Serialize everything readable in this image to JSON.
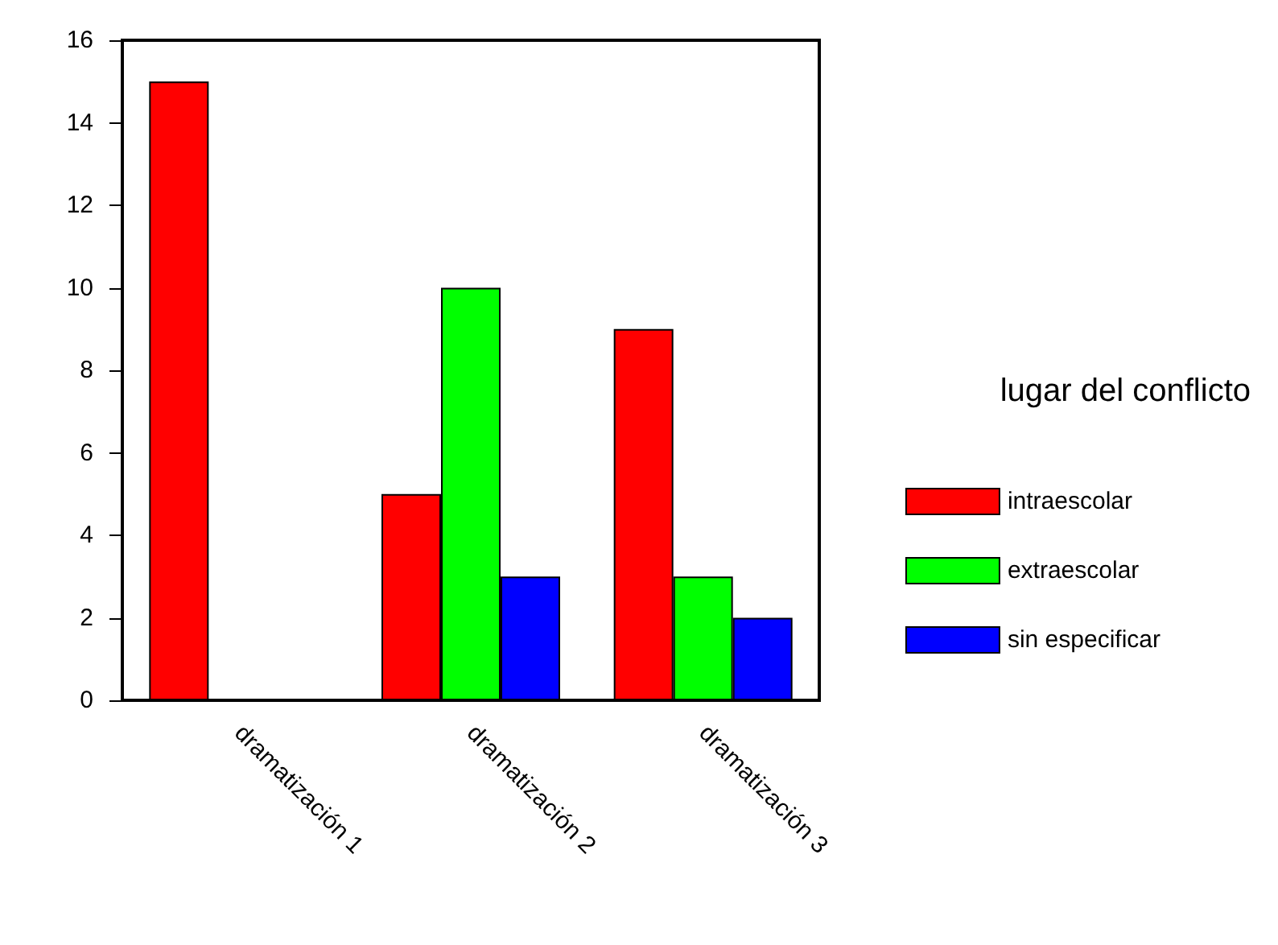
{
  "chart_data": {
    "type": "bar",
    "categories": [
      "dramatización 1",
      "dramatización 2",
      "dramatización 3"
    ],
    "series": [
      {
        "name": "intraescolar",
        "color": "#ff0000",
        "values": [
          15,
          5,
          9
        ]
      },
      {
        "name": "extraescolar",
        "color": "#00ff00",
        "values": [
          0,
          10,
          3
        ]
      },
      {
        "name": "sin especificar",
        "color": "#0000ff",
        "values": [
          0,
          3,
          2
        ]
      }
    ],
    "ylim": [
      0,
      16
    ],
    "yticks": [
      0,
      2,
      4,
      6,
      8,
      10,
      12,
      14,
      16
    ],
    "grid": false,
    "legend": "right",
    "legend_title": "lugar del conflicto"
  }
}
